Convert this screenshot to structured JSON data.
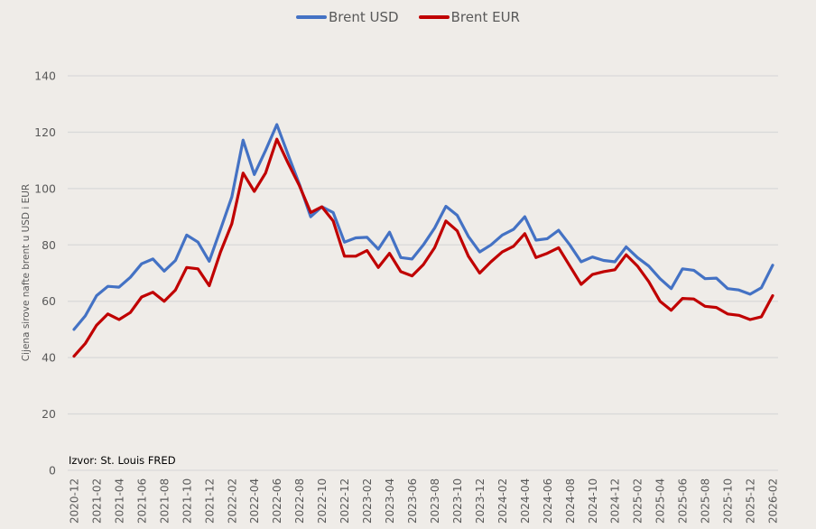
{
  "chart_data": {
    "type": "line",
    "title": "",
    "xlabel": "",
    "ylabel": "Cijena sirove nafte brent u USD i EUR",
    "ylim": [
      0,
      140
    ],
    "yticks": [
      0,
      20,
      40,
      60,
      80,
      100,
      120,
      140
    ],
    "grid": true,
    "legend_position": "top-center",
    "source_note": "Izvor: St. Louis FRED",
    "x": [
      "2020-12",
      "2021-01",
      "2021-02",
      "2021-03",
      "2021-04",
      "2021-05",
      "2021-06",
      "2021-07",
      "2021-08",
      "2021-09",
      "2021-10",
      "2021-11",
      "2021-12",
      "2022-01",
      "2022-02",
      "2022-03",
      "2022-04",
      "2022-05",
      "2022-06",
      "2022-07",
      "2022-08",
      "2022-09",
      "2022-10",
      "2022-11",
      "2022-12",
      "2023-01",
      "2023-02",
      "2023-03",
      "2023-04",
      "2023-05",
      "2023-06",
      "2023-07",
      "2023-08",
      "2023-09",
      "2023-10",
      "2023-11",
      "2023-12",
      "2024-01",
      "2024-02",
      "2024-03",
      "2024-04",
      "2024-05",
      "2024-06",
      "2024-07",
      "2024-08",
      "2024-09",
      "2024-10",
      "2024-11",
      "2024-12",
      "2025-01",
      "2025-02",
      "2025-03",
      "2025-04",
      "2025-05",
      "2025-06",
      "2025-07",
      "2025-08",
      "2025-09",
      "2025-10",
      "2025-11",
      "2025-12",
      "2026-01",
      "2026-02"
    ],
    "xtick_labels": [
      "2020-12",
      "2021-02",
      "2021-04",
      "2021-06",
      "2021-08",
      "2021-10",
      "2021-12",
      "2022-02",
      "2022-04",
      "2022-06",
      "2022-08",
      "2022-10",
      "2022-12",
      "2023-02",
      "2023-04",
      "2023-06",
      "2023-08",
      "2023-10",
      "2023-12",
      "2024-02",
      "2024-04",
      "2024-06",
      "2024-08",
      "2024-10",
      "2024-12",
      "2025-02",
      "2025-04",
      "2025-06",
      "2025-08",
      "2025-10",
      "2025-12",
      "2026-02"
    ],
    "series": [
      {
        "name": "Brent USD",
        "color": "#4472c4",
        "values": [
          50,
          54.8,
          62,
          65.3,
          65,
          68.5,
          73.3,
          75,
          70.7,
          74.5,
          83.5,
          81,
          74.2,
          85.5,
          97,
          117.2,
          105,
          113.5,
          122.7,
          112,
          101.5,
          90,
          93.5,
          91.5,
          81,
          82.5,
          82.7,
          78.5,
          84.5,
          75.5,
          75,
          80,
          86,
          93.7,
          90.5,
          83,
          77.5,
          80,
          83.5,
          85.5,
          90,
          81.7,
          82.2,
          85.2,
          80,
          74,
          75.7,
          74.5,
          74,
          79.3,
          75.5,
          72.5,
          68,
          64.5,
          71.5,
          71,
          68,
          68.2,
          64.5,
          64,
          62.5,
          64.8,
          72.8
        ]
      },
      {
        "name": "Brent EUR",
        "color": "#c00000",
        "values": [
          40.5,
          45,
          51.5,
          55.5,
          53.5,
          56,
          61.5,
          63.2,
          60,
          64,
          72,
          71.5,
          65.5,
          77.5,
          87.5,
          105.5,
          99,
          105.5,
          117.5,
          109,
          101,
          91.5,
          93.5,
          88.5,
          76,
          76,
          78,
          72,
          77,
          70.5,
          69,
          73,
          79,
          88.5,
          85,
          76,
          70,
          74,
          77.5,
          79.5,
          84,
          75.5,
          77,
          79,
          72.5,
          66,
          69.5,
          70.5,
          71.2,
          76.5,
          72.5,
          67,
          60,
          56.8,
          61,
          60.8,
          58.2,
          57.8,
          55.5,
          55,
          53.5,
          54.5,
          62
        ]
      }
    ]
  }
}
